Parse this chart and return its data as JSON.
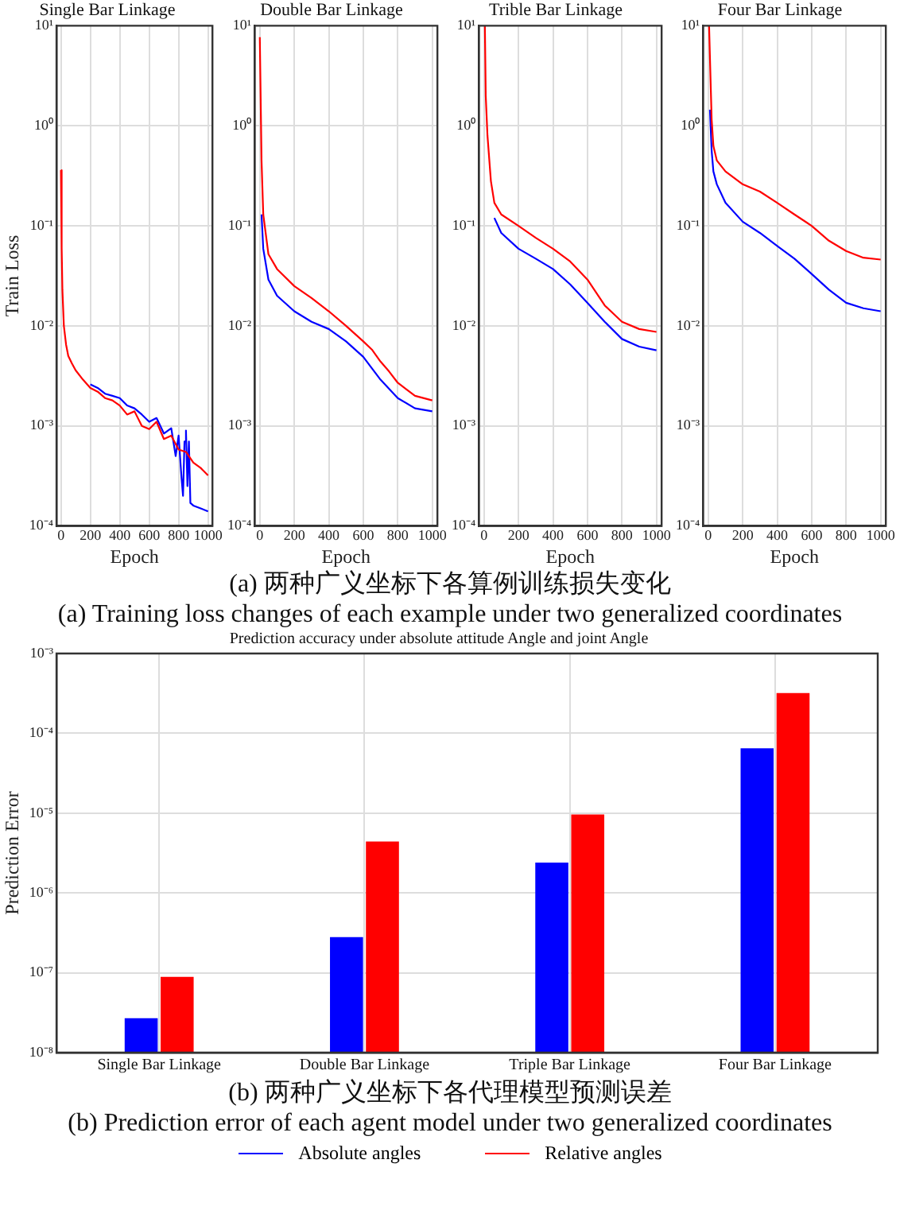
{
  "chart_data": [
    {
      "type": "line",
      "title": "Single Bar Linkage",
      "xlabel": "Epoch",
      "ylabel": "Train Loss",
      "log": "y",
      "grid": true,
      "xlim": [
        -30,
        1030
      ],
      "xticks": [
        0,
        200,
        400,
        600,
        800,
        1000
      ],
      "ylim": [
        0.0001,
        10
      ],
      "yticks": [
        {
          "value": 0.0001,
          "label": "10⁻⁴"
        },
        {
          "value": 0.001,
          "label": "10⁻³"
        },
        {
          "value": 0.01,
          "label": "10⁻²"
        },
        {
          "value": 0.1,
          "label": "10⁻¹"
        },
        {
          "value": 1,
          "label": "10⁰"
        },
        {
          "value": 10,
          "label": "10¹"
        }
      ],
      "annotations": [
        "(a) 两种广义坐标下各算例训练损失变化",
        "(a) Training loss changes of each example under two generalized coordinates"
      ],
      "series": [
        {
          "color": "#0000ff",
          "x": [
            200,
            250,
            300,
            350,
            400,
            450,
            500,
            550,
            600,
            650,
            700,
            750,
            780,
            800,
            820,
            830,
            840,
            850,
            860,
            870,
            880,
            900,
            950,
            1000
          ],
          "values": [
            0.0026,
            0.0024,
            0.0021,
            0.002,
            0.0019,
            0.0016,
            0.0015,
            0.0013,
            0.0011,
            0.0012,
            0.00084,
            0.00095,
            0.0005,
            0.0008,
            0.0003,
            0.0002,
            0.0007,
            0.0009,
            0.00025,
            0.0007,
            0.00017,
            0.00016,
            0.00015,
            0.00014
          ]
        },
        {
          "color": "#ff0000",
          "x": [
            0,
            5,
            10,
            20,
            35,
            50,
            75,
            100,
            150,
            200,
            250,
            300,
            350,
            400,
            450,
            500,
            550,
            600,
            650,
            700,
            750,
            800,
            850,
            900,
            950,
            1000
          ],
          "values": [
            0.36,
            0.06,
            0.023,
            0.01,
            0.0065,
            0.005,
            0.0042,
            0.0036,
            0.0029,
            0.0024,
            0.0022,
            0.0019,
            0.0018,
            0.0016,
            0.0013,
            0.0014,
            0.001,
            0.00093,
            0.0011,
            0.00074,
            0.0008,
            0.00058,
            0.00055,
            0.00043,
            0.00038,
            0.00032
          ]
        }
      ]
    },
    {
      "type": "line",
      "title": "Double Bar Linkage",
      "xlabel": "Epoch",
      "log": "y",
      "grid": true,
      "xlim": [
        -30,
        1030
      ],
      "xticks": [
        0,
        200,
        400,
        600,
        800,
        1000
      ],
      "ylim": [
        0.0001,
        10
      ],
      "yticks": [
        {
          "value": 0.0001,
          "label": "10⁻⁴"
        },
        {
          "value": 0.001,
          "label": "10⁻³"
        },
        {
          "value": 0.01,
          "label": "10⁻²"
        },
        {
          "value": 0.1,
          "label": "10⁻¹"
        },
        {
          "value": 1,
          "label": "10⁰"
        },
        {
          "value": 10,
          "label": "10¹"
        }
      ],
      "series": [
        {
          "color": "#0000ff",
          "x": [
            10,
            20,
            50,
            100,
            200,
            300,
            400,
            500,
            600,
            700,
            800,
            900,
            1000
          ],
          "values": [
            0.13,
            0.059,
            0.029,
            0.02,
            0.014,
            0.011,
            0.0093,
            0.007,
            0.0049,
            0.0029,
            0.0019,
            0.0015,
            0.0014
          ]
        },
        {
          "color": "#ff0000",
          "x": [
            0,
            10,
            20,
            50,
            100,
            200,
            300,
            400,
            500,
            600,
            650,
            700,
            750,
            800,
            900,
            1000
          ],
          "values": [
            7.7,
            0.45,
            0.13,
            0.052,
            0.037,
            0.025,
            0.019,
            0.014,
            0.01,
            0.007,
            0.0058,
            0.0044,
            0.0035,
            0.0027,
            0.002,
            0.0018
          ]
        }
      ]
    },
    {
      "type": "line",
      "title": "Trible Bar Linkage",
      "xlabel": "Epoch",
      "log": "y",
      "grid": true,
      "xlim": [
        -30,
        1030
      ],
      "xticks": [
        0,
        200,
        400,
        600,
        800,
        1000
      ],
      "ylim": [
        0.0001,
        10
      ],
      "yticks": [
        {
          "value": 0.0001,
          "label": "10⁻⁴"
        },
        {
          "value": 0.001,
          "label": "10⁻³"
        },
        {
          "value": 0.01,
          "label": "10⁻²"
        },
        {
          "value": 0.1,
          "label": "10⁻¹"
        },
        {
          "value": 1,
          "label": "10⁰"
        },
        {
          "value": 10,
          "label": "10¹"
        }
      ],
      "series": [
        {
          "color": "#0000ff",
          "x": [
            60,
            100,
            200,
            300,
            400,
            500,
            600,
            700,
            800,
            900,
            1000
          ],
          "values": [
            0.12,
            0.085,
            0.059,
            0.047,
            0.037,
            0.026,
            0.017,
            0.011,
            0.0074,
            0.0062,
            0.0057
          ]
        },
        {
          "color": "#ff0000",
          "x": [
            5,
            10,
            20,
            40,
            60,
            100,
            200,
            300,
            400,
            500,
            600,
            700,
            800,
            900,
            1000
          ],
          "values": [
            10,
            2,
            0.8,
            0.28,
            0.17,
            0.13,
            0.1,
            0.076,
            0.059,
            0.044,
            0.029,
            0.016,
            0.011,
            0.0093,
            0.0087
          ]
        }
      ]
    },
    {
      "type": "line",
      "title": "Four Bar Linkage",
      "xlabel": "Epoch",
      "log": "y",
      "grid": true,
      "xlim": [
        -30,
        1030
      ],
      "xticks": [
        0,
        200,
        400,
        600,
        800,
        1000
      ],
      "ylim": [
        0.0001,
        10
      ],
      "yticks": [
        {
          "value": 0.0001,
          "label": "10⁻⁴"
        },
        {
          "value": 0.001,
          "label": "10⁻³"
        },
        {
          "value": 0.01,
          "label": "10⁻²"
        },
        {
          "value": 0.1,
          "label": "10⁻¹"
        },
        {
          "value": 1,
          "label": "10⁰"
        },
        {
          "value": 10,
          "label": "10¹"
        }
      ],
      "series": [
        {
          "color": "#0000ff",
          "x": [
            10,
            20,
            30,
            50,
            100,
            200,
            300,
            400,
            500,
            600,
            700,
            800,
            900,
            1000
          ],
          "values": [
            1.45,
            0.56,
            0.35,
            0.26,
            0.17,
            0.11,
            0.085,
            0.063,
            0.047,
            0.033,
            0.023,
            0.017,
            0.015,
            0.014
          ]
        },
        {
          "color": "#ff0000",
          "x": [
            5,
            10,
            20,
            30,
            50,
            100,
            200,
            300,
            400,
            500,
            600,
            700,
            800,
            900,
            1000
          ],
          "values": [
            10,
            4.8,
            1.15,
            0.63,
            0.45,
            0.35,
            0.26,
            0.22,
            0.17,
            0.13,
            0.1,
            0.071,
            0.056,
            0.048,
            0.046
          ]
        }
      ]
    },
    {
      "type": "bar",
      "title": "Prediction accuracy under absolute attitude Angle and joint Angle",
      "ylabel": "Prediction Error",
      "log": "y",
      "grid": true,
      "legend": "bottom",
      "ylim": [
        1e-08,
        0.001
      ],
      "yticks": [
        {
          "value": 1e-08,
          "label": "10⁻⁸"
        },
        {
          "value": 1e-07,
          "label": "10⁻⁷"
        },
        {
          "value": 1e-06,
          "label": "10⁻⁶"
        },
        {
          "value": 1e-05,
          "label": "10⁻⁵"
        },
        {
          "value": 0.0001,
          "label": "10⁻⁴"
        },
        {
          "value": 0.001,
          "label": "10⁻³"
        }
      ],
      "categories": [
        "Single Bar Linkage",
        "Double Bar Linkage",
        "Triple Bar Linkage",
        "Four Bar Linkage"
      ],
      "annotations": [
        "(b) 两种广义坐标下各代理模型预测误差",
        "(b) Prediction error of each agent model under two generalized coordinates"
      ],
      "series": [
        {
          "name": "Absolute angles",
          "color": "#0000ff",
          "values": [
            2.7e-08,
            2.8e-07,
            2.4e-06,
            6.5e-05
          ]
        },
        {
          "name": "Relative angles",
          "color": "#ff0000",
          "values": [
            8.9e-08,
            4.4e-06,
            9.6e-06,
            0.00032
          ]
        }
      ]
    }
  ]
}
